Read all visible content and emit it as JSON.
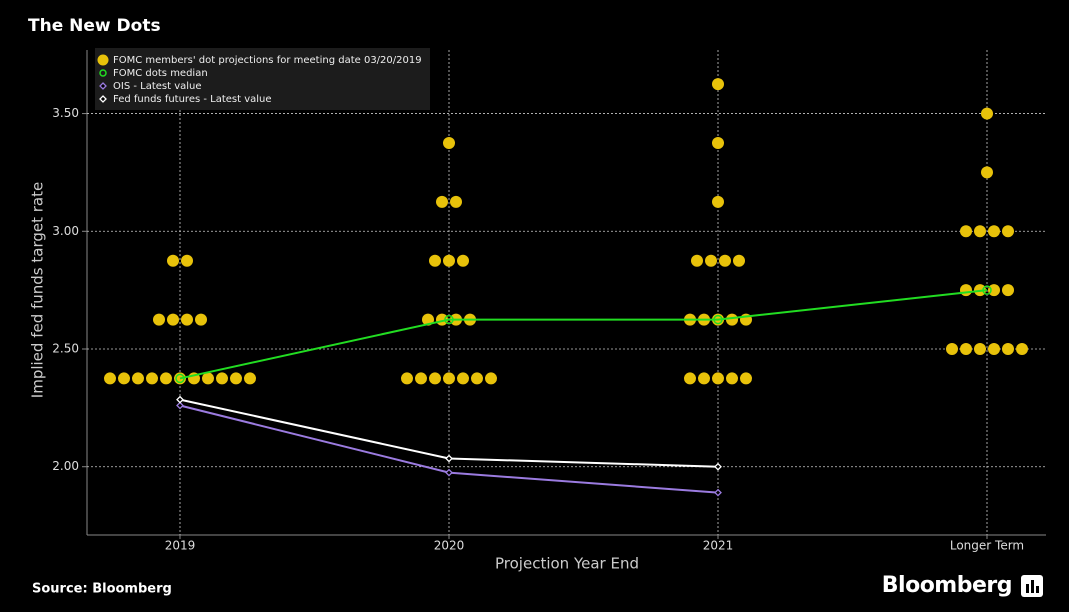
{
  "chart_data": {
    "type": "dot",
    "title": "The New Dots",
    "y_label": "Implied fed funds target rate",
    "x_label": "Projection Year End",
    "source": "Source: Bloomberg",
    "brand": "Bloomberg",
    "categories": [
      "2019",
      "2020",
      "2021",
      "Longer Term"
    ],
    "ylim": [
      1.71,
      3.77
    ],
    "yticks": [
      {
        "value": 2,
        "label": "2.00"
      },
      {
        "value": 2.5,
        "label": "2.50"
      },
      {
        "value": 3,
        "label": "3.00"
      },
      {
        "value": 3.5,
        "label": "3.50"
      }
    ],
    "grid": true,
    "legend": "upper left",
    "dots": {
      "name": "FOMC members' dot projections for meeting date 03/20/2019",
      "color": "#e8c20a",
      "values": [
        [
          2.375,
          2.375,
          2.375,
          2.375,
          2.375,
          2.375,
          2.375,
          2.375,
          2.375,
          2.375,
          2.375,
          2.625,
          2.625,
          2.625,
          2.625,
          2.875,
          2.875
        ],
        [
          2.375,
          2.375,
          2.375,
          2.375,
          2.375,
          2.375,
          2.375,
          2.625,
          2.625,
          2.625,
          2.625,
          2.875,
          2.875,
          2.875,
          3.125,
          3.125,
          3.375
        ],
        [
          2.375,
          2.375,
          2.375,
          2.375,
          2.375,
          2.625,
          2.625,
          2.625,
          2.625,
          2.625,
          2.875,
          2.875,
          2.875,
          2.875,
          3.125,
          3.375,
          3.625
        ],
        [
          2.5,
          2.5,
          2.5,
          2.5,
          2.5,
          2.5,
          2.75,
          2.75,
          2.75,
          2.75,
          3,
          3,
          3,
          3,
          3.25,
          3.5
        ]
      ]
    },
    "series": [
      {
        "name": "FOMC dots median",
        "color": "#22dd22",
        "marker": "ring",
        "values": [
          2.375,
          2.625,
          2.625,
          2.75
        ]
      },
      {
        "name": "OIS - Latest value",
        "color": "#9b7be0",
        "marker": "diamond",
        "values": [
          2.26,
          1.975,
          1.89,
          null
        ]
      },
      {
        "name": "Fed funds futures - Latest value",
        "color": "#ffffff",
        "marker": "diamond",
        "values": [
          2.285,
          2.035,
          2.0,
          null
        ]
      }
    ]
  }
}
